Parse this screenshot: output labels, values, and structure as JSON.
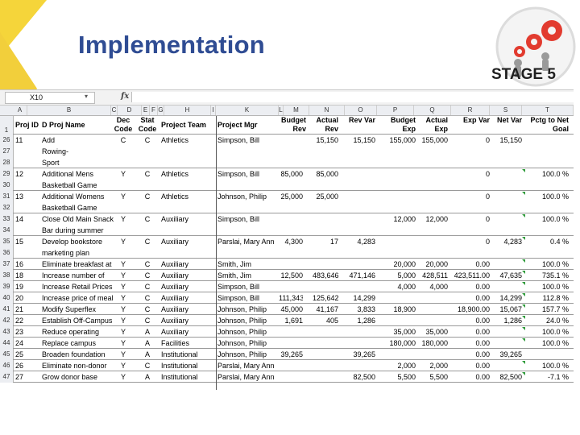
{
  "slide": {
    "title": "Implementation",
    "stage_label": "STAGE 5"
  },
  "colors": {
    "title": "#2f4c93",
    "accent_yellow": "#f5d53a",
    "gear_red": "#e23b2f",
    "error_triangle": "#2e9b3a"
  },
  "formula_bar": {
    "name_box": "X10",
    "fx_label": "fx"
  },
  "columns": [
    "A",
    "B",
    "C",
    "D",
    "E",
    "F",
    "G",
    "H",
    "I",
    "K",
    "L",
    "M",
    "N",
    "O",
    "P",
    "Q",
    "R",
    "S",
    "T"
  ],
  "header_row": {
    "num": "1",
    "cells": [
      "Proj ID",
      "D Proj Name",
      "Dec Code",
      "Stat Code",
      "Project Team",
      "Project Mgr",
      "Budget Rev",
      "Actual Rev",
      "Rev Var",
      "Budget Exp",
      "Actual Exp",
      "Exp Var",
      "Net Var",
      "Pctg to Net Goal"
    ]
  },
  "rows": [
    {
      "num": "26",
      "cells": [
        "11",
        "Add",
        "C",
        "C",
        "Athletics",
        "Simpson, Bill",
        "",
        "15,150",
        "15,150",
        "155,000",
        "155,000",
        "0",
        "15,150",
        ""
      ]
    },
    {
      "num": "27",
      "cells": [
        "",
        "Rowing-",
        "",
        "",
        "",
        "",
        "",
        "",
        "",
        "",
        "",
        "",
        "",
        ""
      ]
    },
    {
      "num": "28",
      "cells": [
        "",
        "Sport",
        "",
        "",
        "",
        "",
        "",
        "",
        "",
        "",
        "",
        "",
        "",
        ""
      ]
    },
    {
      "num": "29",
      "cells": [
        "12",
        "Additional Mens",
        "Y",
        "C",
        "Athletics",
        "Simpson, Bill",
        "85,000",
        "85,000",
        "",
        "",
        "",
        "0",
        "",
        "100.0 %"
      ]
    },
    {
      "num": "30",
      "cells": [
        "",
        "Basketball Game",
        "",
        "",
        "",
        "",
        "",
        "",
        "",
        "",
        "",
        "",
        "",
        ""
      ]
    },
    {
      "num": "31",
      "cells": [
        "13",
        "Additional Womens",
        "Y",
        "C",
        "Athletics",
        "Johnson, Philip",
        "25,000",
        "25,000",
        "",
        "",
        "",
        "0",
        "",
        "100.0 %"
      ]
    },
    {
      "num": "32",
      "cells": [
        "",
        "Basketball Game",
        "",
        "",
        "",
        "",
        "",
        "",
        "",
        "",
        "",
        "",
        "",
        ""
      ]
    },
    {
      "num": "33",
      "cells": [
        "14",
        "Close Old Main Snack",
        "Y",
        "C",
        "Auxiliary",
        "Simpson, Bill",
        "",
        "",
        "",
        "12,000",
        "12,000",
        "0",
        "",
        "100.0 %"
      ]
    },
    {
      "num": "34",
      "cells": [
        "",
        "Bar during summer",
        "",
        "",
        "",
        "",
        "",
        "",
        "",
        "",
        "",
        "",
        "",
        ""
      ]
    },
    {
      "num": "35",
      "cells": [
        "15",
        "Develop bookstore",
        "Y",
        "C",
        "Auxiliary",
        "Parslai, Mary Ann",
        "4,300",
        "17",
        "4,283",
        "",
        "",
        "0",
        "4,283",
        "0.4 %"
      ]
    },
    {
      "num": "36",
      "cells": [
        "",
        "marketing plan",
        "",
        "",
        "",
        "",
        "",
        "",
        "",
        "",
        "",
        "",
        "",
        ""
      ]
    },
    {
      "num": "37",
      "cells": [
        "16",
        "Eliminate breakfast at",
        "Y",
        "C",
        "Auxiliary",
        "Smith, Jim",
        "",
        "",
        "",
        "20,000",
        "20,000",
        "0.00",
        "",
        "100.0 %"
      ]
    },
    {
      "num": "38",
      "cells": [
        "18",
        "Increase number of",
        "Y",
        "C",
        "Auxiliary",
        "Smith, Jim",
        "12,500",
        "483,646",
        "471,146",
        "5,000",
        "428,511",
        "423,511.00",
        "47,635",
        "735.1 %"
      ]
    },
    {
      "num": "39",
      "cells": [
        "19",
        "Increase Retail Prices",
        "Y",
        "C",
        "Auxiliary",
        "Simpson, Bill",
        "",
        "",
        "",
        "4,000",
        "4,000",
        "0.00",
        "",
        "100.0 %"
      ]
    },
    {
      "num": "40",
      "cells": [
        "20",
        "Increase price of meal",
        "Y",
        "C",
        "Auxiliary",
        "Simpson, Bill",
        "111,343",
        "125,642",
        "14,299",
        "",
        "",
        "0.00",
        "14,299",
        "112.8 %"
      ]
    },
    {
      "num": "41",
      "cells": [
        "21",
        "Modify Superflex",
        "Y",
        "C",
        "Auxiliary",
        "Johnson, Philip",
        "45,000",
        "41,167",
        "3,833",
        "18,900",
        "",
        "18,900.00",
        "15,067",
        "157.7 %"
      ]
    },
    {
      "num": "42",
      "cells": [
        "22",
        "Establish Off-Campus",
        "Y",
        "C",
        "Auxiliary",
        "Johnson, Philip",
        "1,691",
        "405",
        "1,286",
        "",
        "",
        "0.00",
        "1,286",
        "24.0 %"
      ]
    },
    {
      "num": "43",
      "cells": [
        "23",
        "Reduce operating",
        "Y",
        "A",
        "Auxiliary",
        "Johnson, Philip",
        "",
        "",
        "",
        "35,000",
        "35,000",
        "0.00",
        "",
        "100.0 %"
      ]
    },
    {
      "num": "44",
      "cells": [
        "24",
        "Replace campus",
        "Y",
        "A",
        "Facilities",
        "Johnson, Philip",
        "",
        "",
        "",
        "180,000",
        "180,000",
        "0.00",
        "",
        "100.0 %"
      ]
    },
    {
      "num": "45",
      "cells": [
        "25",
        "Broaden foundation",
        "Y",
        "A",
        "Institutional",
        "Johnson, Philip",
        "39,265",
        "",
        "39,265",
        "",
        "",
        "0.00",
        "39,265",
        ""
      ]
    },
    {
      "num": "46",
      "cells": [
        "26",
        "Eliminate non-donor",
        "Y",
        "C",
        "Institutional",
        "Parslai, Mary Ann",
        "",
        "",
        "",
        "2,000",
        "2,000",
        "0.00",
        "",
        "100.0 %"
      ]
    },
    {
      "num": "47",
      "cells": [
        "27",
        "Grow donor base",
        "Y",
        "A",
        "Institutional",
        "Parslai, Mary Ann",
        "",
        "",
        "82,500",
        "5,500",
        "5,500",
        "0.00",
        "82,500",
        "-7.1 %"
      ]
    }
  ]
}
